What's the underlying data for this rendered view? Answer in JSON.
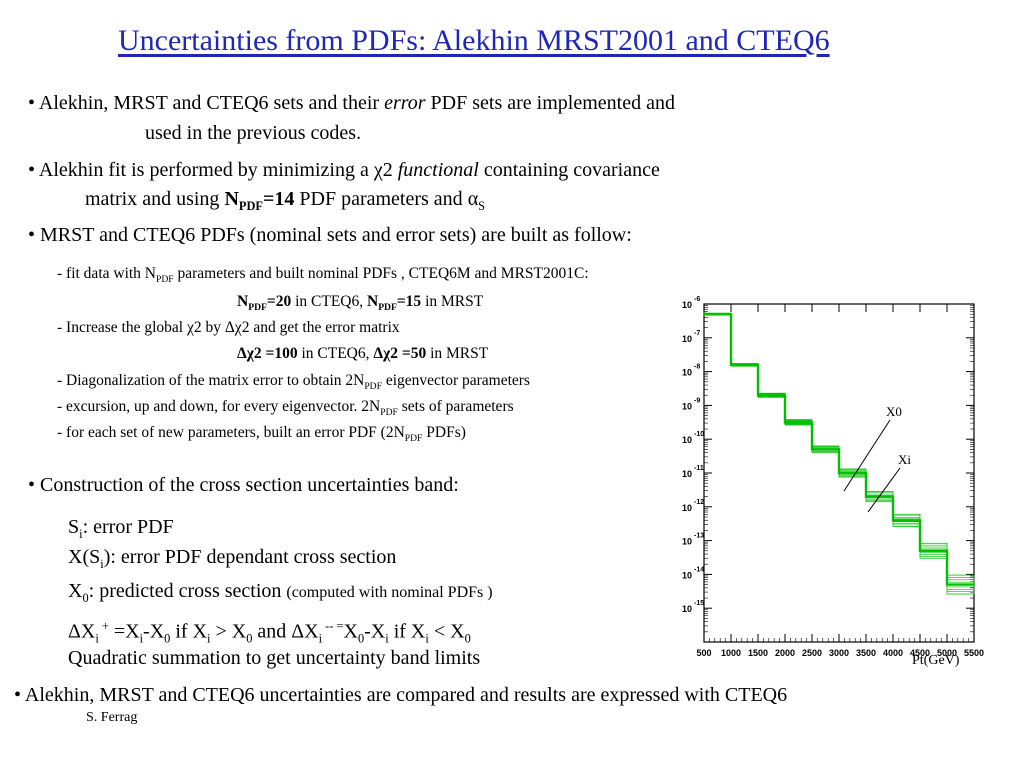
{
  "slide": {
    "title": "Uncertainties from PDFs: Alekhin MRST2001 and CTEQ6",
    "author": "S. Ferrag"
  },
  "bullets": {
    "b1": {
      "a": "Alekhin, MRST and CTEQ6 sets and their ",
      "em": "error",
      "b": " PDF sets are implemented and",
      "line2": "used in the previous codes."
    },
    "b2": {
      "a": "Alekhin fit is performed by minimizing a ",
      "chi": "χ2 ",
      "em": "functional",
      "b": " containing covariance",
      "l2a": "matrix and using ",
      "npdf_n": "N",
      "npdf_sub": "PDF",
      "npdf_val": "=14",
      "l2b": " PDF parameters and ",
      "alpha": "α",
      "alpha_sub": "S"
    },
    "b3": "MRST and CTEQ6 PDFs (nominal sets and error sets) are built as follow:",
    "b4": "Construction of the cross section uncertainties band:",
    "b5": "Alekhin, MRST and CTEQ6 uncertainties are compared and results are expressed with CTEQ6"
  },
  "steps": {
    "s1a": "- fit data with N",
    "s1sub": "PDF",
    "s1b": " parameters and built nominal PDFs , CTEQ6M and MRST2001C:",
    "s1c_n": "N",
    "s1c_sub": "PDF",
    "s1c_v": "=20",
    "s1c_t": " in CTEQ6, ",
    "s1c_n2": "N",
    "s1c_sub2": "PDF",
    "s1c_v2": "=15",
    "s1c_t2": " in MRST",
    "s2": "- Increase the global χ2 by  Δχ2 and get the error matrix",
    "s2c_b": "Δχ2 =100",
    "s2c_t": " in CTEQ6, ",
    "s2c_b2": "Δχ2 =50",
    "s2c_t2": " in MRST",
    "s3a": "- Diagonalization of the matrix error to obtain 2N",
    "s3sub": "PDF",
    "s3b": " eigenvector parameters",
    "s4a": "- excursion, up and down, for every eigenvector. 2N",
    "s4sub": "PDF",
    "s4b": " sets of parameters",
    "s5a": "- for each set of new parameters, built an error PDF (2N",
    "s5sub": "PDF",
    "s5b": " PDFs)"
  },
  "construction": {
    "l1a": "S",
    "l1sub": "i",
    "l1b": ": error PDF",
    "l2a": "X(S",
    "l2sub": "i",
    "l2b": "): error PDF dependant cross section",
    "l3a": "X",
    "l3sub": "0",
    "l3b": ":  predicted cross section ",
    "l3small": "(computed with nominal PDFs )",
    "l4": {
      "d1": "ΔX",
      "i1": "i",
      "sp": " +",
      "eq": " =X",
      "i2": "i",
      "m": "-X",
      "z1": "0",
      "if1": " if   X",
      "i3": "i",
      "gt": " > X",
      "z2": "0",
      "and": " and ΔX",
      "i4": "i",
      "sm": " -- =",
      "x0": "X",
      "z3": "0",
      "m2": "-X",
      "i5": "i",
      "if2": " if   X",
      "i6": "i",
      "lt": " < X",
      "z4": "0"
    },
    "l5": "Quadratic summation to get uncertainty band limits"
  },
  "chart_data": {
    "type": "line",
    "xlabel": "Pt(GeV)",
    "ylabel": "",
    "xlim": [
      500,
      5500
    ],
    "ylim_exponent": [
      -16,
      -6
    ],
    "x_ticks": [
      "500",
      "1000",
      "1500",
      "2000",
      "2500",
      "3000",
      "3500",
      "4000",
      "4500",
      "5000",
      "5500"
    ],
    "y_ticks": [
      {
        "base": "10",
        "exp": "-6"
      },
      {
        "base": "10",
        "exp": "-7"
      },
      {
        "base": "10",
        "exp": "-8"
      },
      {
        "base": "10",
        "exp": "-9"
      },
      {
        "base": "10",
        "exp": "-10"
      },
      {
        "base": "10",
        "exp": "-11"
      },
      {
        "base": "10",
        "exp": "-12"
      },
      {
        "base": "10",
        "exp": "-13"
      },
      {
        "base": "10",
        "exp": "-14"
      },
      {
        "base": "10",
        "exp": "-15"
      }
    ],
    "bins": [
      500,
      1000,
      1500,
      2000,
      2500,
      3000,
      3500,
      4000,
      4500,
      5000,
      5500
    ],
    "log10_values": [
      -6.3,
      -7.8,
      -8.7,
      -9.5,
      -10.3,
      -11.0,
      -11.7,
      -12.4,
      -13.3,
      -14.3
    ],
    "band_half_width_log10": [
      0.03,
      0.04,
      0.06,
      0.08,
      0.1,
      0.12,
      0.15,
      0.18,
      0.22,
      0.28
    ],
    "annotations": [
      "X0",
      "Xi"
    ],
    "color": "#00c000"
  }
}
